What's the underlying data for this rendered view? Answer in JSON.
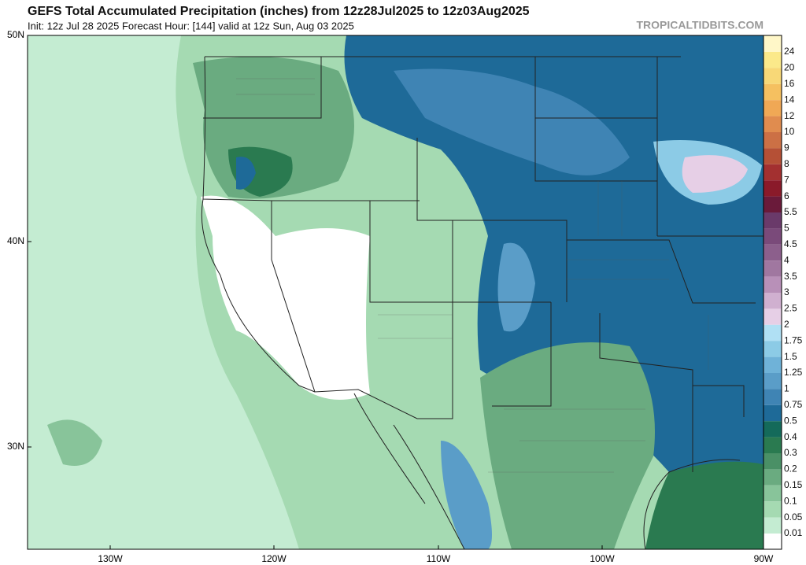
{
  "header": {
    "title": "GEFS Total Accumulated Precipitation (inches) from 12z28Jul2025 to 12z03Aug2025",
    "subtitle": "Init: 12z Jul 28 2025   Forecast Hour: [144]   valid at 12z Sun, Aug 03 2025",
    "watermark": "TROPICALTIDBITS.COM"
  },
  "map": {
    "lat_labels": [
      "50N",
      "40N",
      "30N"
    ],
    "lon_labels": [
      "130W",
      "120W",
      "110W",
      "100W",
      "90W"
    ]
  },
  "colorbar": {
    "top_color": "#fff7c8",
    "levels": [
      24,
      20,
      16,
      14,
      12,
      10,
      9,
      8,
      7,
      6,
      5.5,
      5,
      4.5,
      4,
      3.5,
      3,
      2.5,
      2,
      1.75,
      1.5,
      1.25,
      1,
      0.75,
      0.5,
      0.4,
      0.3,
      0.2,
      0.15,
      0.1,
      0.05,
      0.01
    ],
    "colors": [
      "#fbe98a",
      "#f8d877",
      "#f5c060",
      "#f0a855",
      "#e08c4f",
      "#cc7045",
      "#b55036",
      "#a33030",
      "#8a1a2a",
      "#6a1a3a",
      "#6a3a6a",
      "#7a4a7a",
      "#8c5f8c",
      "#a077a0",
      "#b890b8",
      "#d0b0d0",
      "#e6cfe6",
      "#b0e0f4",
      "#8ccbe6",
      "#6fb2d8",
      "#5a9dc8",
      "#3f84b4",
      "#1e6a98",
      "#146a5a",
      "#2a7a50",
      "#4a9066",
      "#6aab80",
      "#88c49a",
      "#a5dab2",
      "#c4ecd2",
      "#ffffff"
    ]
  }
}
